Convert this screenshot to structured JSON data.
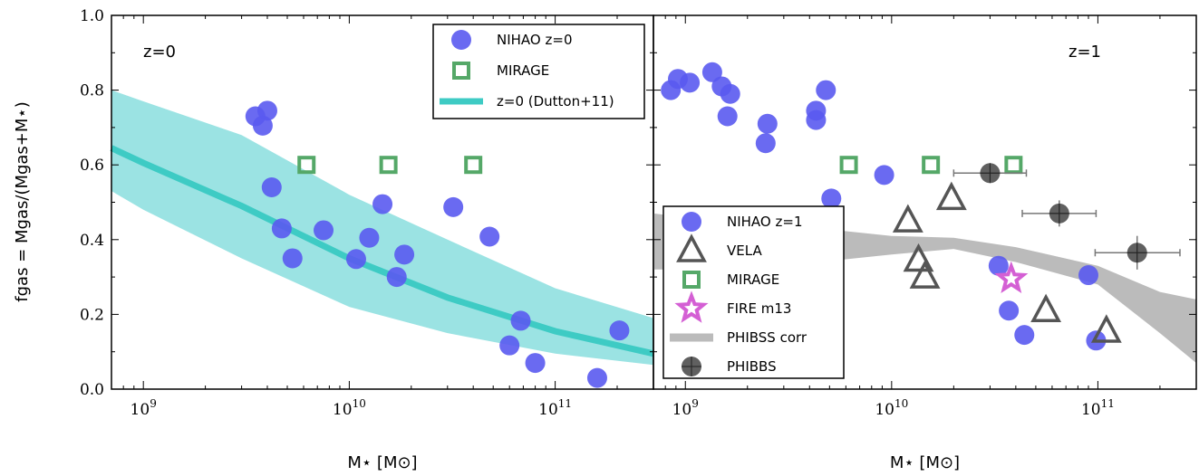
{
  "chart_data": [
    {
      "type": "scatter",
      "panel_label": "z=0",
      "xscale": "log",
      "xlim": [
        700000000.0,
        300000000000.0
      ],
      "ylim": [
        0.0,
        1.0
      ],
      "xlabel": "M⋆ [M⊙]",
      "ylabel": "fgas = Mgas/(Mgas+M⋆)",
      "x_ticks": [
        {
          "exp": "9",
          "v": 1000000000.0
        },
        {
          "exp": "10",
          "v": 10000000000.0
        },
        {
          "exp": "11",
          "v": 100000000000.0
        }
      ],
      "y_ticks": [
        "0.0",
        "0.2",
        "0.4",
        "0.6",
        "0.8",
        "1.0"
      ],
      "legend": {
        "placement": "top-right",
        "entries": [
          "NIHAO z=0",
          "MIRAGE",
          "z=0 (Dutton+11)"
        ]
      },
      "series": [
        {
          "name": "NIHAO z=0",
          "marker": "circle",
          "color": "#5a5af0",
          "x": [
            3500000000.0,
            4000000000.0,
            3800000000.0,
            4200000000.0,
            4700000000.0,
            5300000000.0,
            7500000000.0,
            10800000000.0,
            12500000000.0,
            14500000000.0,
            17000000000.0,
            18500000000.0,
            32000000000.0,
            48000000000.0,
            60000000000.0,
            68000000000.0,
            80000000000.0,
            160000000000.0,
            205000000000.0
          ],
          "y": [
            0.73,
            0.745,
            0.705,
            0.54,
            0.43,
            0.35,
            0.425,
            0.348,
            0.405,
            0.495,
            0.3,
            0.36,
            0.487,
            0.408,
            0.117,
            0.183,
            0.07,
            0.03,
            0.157
          ]
        },
        {
          "name": "MIRAGE",
          "marker": "open-square",
          "color": "#55a868",
          "x": [
            6200000000.0,
            15500000000.0,
            40000000000.0
          ],
          "y": [
            0.6,
            0.6,
            0.6
          ]
        },
        {
          "name": "z=0 (Dutton+11)",
          "marker": "line",
          "color": "#3ecbc4",
          "x": [
            700000000.0,
            1000000000.0,
            3000000000.0,
            10000000000.0,
            30000000000.0,
            100000000000.0,
            300000000000.0
          ],
          "y": [
            0.645,
            0.605,
            0.49,
            0.35,
            0.245,
            0.155,
            0.095
          ],
          "band_upper": [
            0.8,
            0.77,
            0.68,
            0.52,
            0.4,
            0.27,
            0.19
          ],
          "band_lower": [
            0.53,
            0.48,
            0.35,
            0.22,
            0.15,
            0.095,
            0.065
          ]
        }
      ]
    },
    {
      "type": "scatter",
      "panel_label": "z=1",
      "xscale": "log",
      "xlim": [
        700000000.0,
        300000000000.0
      ],
      "ylim": [
        0.0,
        1.0
      ],
      "xlabel": "M⋆ [M⊙]",
      "x_ticks": [
        {
          "exp": "9",
          "v": 1000000000.0
        },
        {
          "exp": "10",
          "v": 10000000000.0
        },
        {
          "exp": "11",
          "v": 100000000000.0
        }
      ],
      "legend": {
        "placement": "bottom-left",
        "entries": [
          "NIHAO z=1",
          "VELA",
          "MIRAGE",
          "FIRE m13",
          "PHIBSS corr",
          "PHIBBS"
        ]
      },
      "series": [
        {
          "name": "NIHAO z=1",
          "marker": "circle",
          "color": "#5a5af0",
          "x": [
            850000000.0,
            920000000.0,
            1050000000.0,
            1350000000.0,
            1500000000.0,
            1650000000.0,
            1600000000.0,
            2500000000.0,
            2450000000.0,
            4300000000.0,
            4300000000.0,
            4800000000.0,
            5100000000.0,
            9200000000.0,
            33000000000.0,
            37000000000.0,
            44000000000.0,
            90000000000.0,
            98000000000.0
          ],
          "y": [
            0.8,
            0.83,
            0.82,
            0.848,
            0.81,
            0.79,
            0.73,
            0.71,
            0.658,
            0.745,
            0.72,
            0.8,
            0.51,
            0.573,
            0.33,
            0.21,
            0.145,
            0.305,
            0.13
          ]
        },
        {
          "name": "VELA",
          "marker": "open-triangle",
          "color": "#555555",
          "x": [
            12000000000.0,
            13500000000.0,
            14500000000.0,
            19500000000.0,
            56000000000.0,
            110000000000.0
          ],
          "y": [
            0.45,
            0.345,
            0.3,
            0.51,
            0.21,
            0.155
          ]
        },
        {
          "name": "MIRAGE",
          "marker": "open-square",
          "color": "#55a868",
          "x": [
            6200000000.0,
            15500000000.0,
            39000000000.0
          ],
          "y": [
            0.6,
            0.6,
            0.6
          ]
        },
        {
          "name": "FIRE m13",
          "marker": "open-star",
          "color": "#d45fd4",
          "x": [
            38000000000.0
          ],
          "y": [
            0.295
          ]
        },
        {
          "name": "PHIBSS corr",
          "marker": "band",
          "color": "#bbbbbb",
          "x": [
            700000000.0,
            1000000000.0,
            3000000000.0,
            10000000000.0,
            20000000000.0,
            40000000000.0,
            100000000000.0,
            200000000000.0,
            300000000000.0
          ],
          "upper": [
            0.47,
            0.46,
            0.44,
            0.41,
            0.405,
            0.38,
            0.33,
            0.26,
            0.24
          ],
          "lower": [
            0.32,
            0.32,
            0.33,
            0.36,
            0.375,
            0.34,
            0.28,
            0.15,
            0.07
          ]
        },
        {
          "name": "PHIBBS",
          "marker": "crossed-circle",
          "color": "#444444",
          "x": [
            30000000000.0,
            65000000000.0,
            155000000000.0
          ],
          "y": [
            0.578,
            0.47,
            0.365
          ],
          "xerr_lo": [
            20000000000.0,
            43000000000.0,
            97000000000.0
          ],
          "xerr_hi": [
            45000000000.0,
            98000000000.0,
            250000000000.0
          ],
          "yerr": [
            0.02,
            0.035,
            0.045
          ]
        }
      ]
    }
  ]
}
